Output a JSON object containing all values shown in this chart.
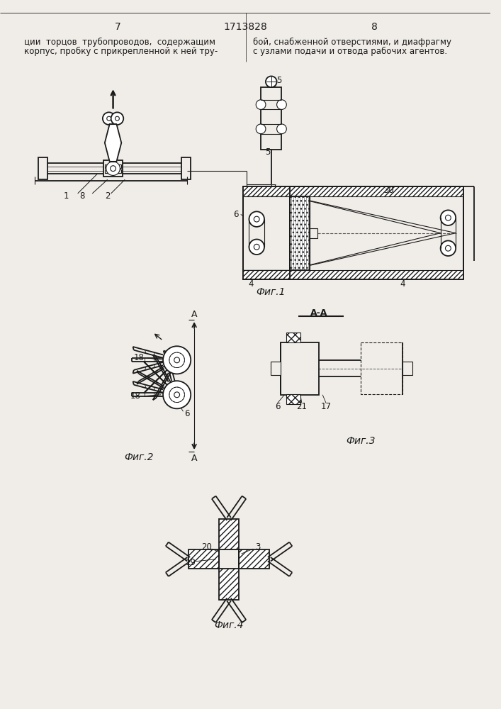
{
  "bg_color": "#f0ede8",
  "line_color": "#1a1a1a",
  "page_left": "7",
  "page_center": "1713828",
  "page_right": "8",
  "text_left1": "ции  торцов  трубопроводов,  содержащим",
  "text_left2": "корпус, пробку с прикрепленной к ней тру-",
  "text_right1": "бой, снабженной отверстиями, и диафрагму",
  "text_right2": "с узлами подачи и отвода рабочих агентов.",
  "fig1_cap": "Фиг.1",
  "fig2_cap": "Фиг.2",
  "fig3_cap": "Фиг.3",
  "fig4_cap": "Фиг.4"
}
